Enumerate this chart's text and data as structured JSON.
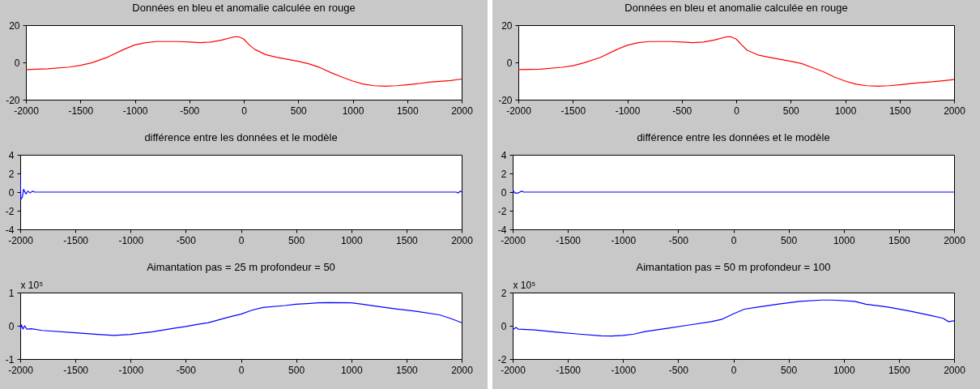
{
  "chart_data": [
    {
      "type": "line",
      "title": "Données en bleu et anomalie calculée en rouge",
      "xlim": [
        -2000,
        2000
      ],
      "xticks": [
        -2000,
        -1500,
        -1000,
        -500,
        0,
        500,
        1000,
        1500,
        2000
      ],
      "ylim": [
        -20,
        20
      ],
      "yticks": [
        -20,
        0,
        20
      ],
      "grid": false,
      "series": [
        {
          "color": "#ff0000",
          "x": [
            -2000,
            -1800,
            -1600,
            -1500,
            -1400,
            -1250,
            -1100,
            -1000,
            -900,
            -800,
            -600,
            -500,
            -400,
            -300,
            -200,
            -100,
            -50,
            0,
            50,
            100,
            200,
            300,
            500,
            600,
            700,
            800,
            900,
            1000,
            1100,
            1200,
            1300,
            1400,
            1500,
            1600,
            1700,
            1800,
            1900,
            2000
          ],
          "values": [
            -3.9,
            -3.4,
            -2.5,
            -1.6,
            -0.3,
            2.8,
            7,
            9.4,
            10.6,
            11.2,
            11.2,
            10.9,
            10.6,
            10.9,
            12,
            13.6,
            13.8,
            12.5,
            9.4,
            7,
            4.2,
            2.8,
            0.6,
            -0.8,
            -2.8,
            -5.5,
            -7.8,
            -10,
            -11.7,
            -12.5,
            -12.8,
            -12.5,
            -12,
            -11.4,
            -10.6,
            -10.2,
            -9.7,
            -8.9
          ]
        }
      ]
    },
    {
      "type": "line",
      "title": "Données en bleu et anomalie calculée en rouge",
      "xlim": [
        -2000,
        2000
      ],
      "xticks": [
        -2000,
        -1500,
        -1000,
        -500,
        0,
        500,
        1000,
        1500,
        2000
      ],
      "ylim": [
        -20,
        20
      ],
      "yticks": [
        -20,
        0,
        20
      ],
      "grid": false,
      "series": [
        {
          "color": "#ff0000",
          "x": [
            -2000,
            -1800,
            -1600,
            -1500,
            -1400,
            -1250,
            -1100,
            -1000,
            -900,
            -800,
            -600,
            -500,
            -400,
            -300,
            -200,
            -100,
            -50,
            0,
            50,
            100,
            200,
            300,
            500,
            600,
            700,
            800,
            900,
            1000,
            1100,
            1200,
            1300,
            1400,
            1500,
            1600,
            1700,
            1800,
            1900,
            2000
          ],
          "values": [
            -3.9,
            -3.6,
            -2.6,
            -1.8,
            -0.3,
            2.6,
            6.8,
            9.2,
            10.6,
            11.2,
            11.2,
            10.9,
            10.6,
            10.9,
            12,
            13.6,
            13.8,
            12.5,
            9.4,
            6.5,
            4,
            2.8,
            0.6,
            -0.6,
            -2.8,
            -5,
            -7.8,
            -10,
            -11.7,
            -12.5,
            -12.8,
            -12.5,
            -12,
            -11.4,
            -10.8,
            -10.4,
            -9.8,
            -9.2
          ]
        }
      ]
    },
    {
      "type": "line",
      "title": "différence entre les données et le modèle",
      "xlim": [
        -2000,
        2000
      ],
      "xticks": [
        -2000,
        -1500,
        -1000,
        -500,
        0,
        500,
        1000,
        1500,
        2000
      ],
      "ylim": [
        -4,
        4
      ],
      "yticks": [
        -4,
        -2,
        0,
        2,
        4
      ],
      "grid": false,
      "series": [
        {
          "color": "#0000ff",
          "x": [
            -2000,
            -1995,
            -1980,
            -1970,
            -1950,
            -1930,
            -1910,
            -1890,
            -1870,
            1950,
            1970,
            1985,
            2000
          ],
          "values": [
            2,
            -0.8,
            -0.5,
            0.3,
            -0.2,
            0.1,
            -0.1,
            0.1,
            0,
            0,
            -0.1,
            0.1,
            0
          ]
        }
      ]
    },
    {
      "type": "line",
      "title": "différence entre les données et le modèle",
      "xlim": [
        -2000,
        2000
      ],
      "xticks": [
        -2000,
        -1500,
        -1000,
        -500,
        0,
        500,
        1000,
        1500,
        2000
      ],
      "ylim": [
        -4,
        4
      ],
      "yticks": [
        -4,
        -2,
        0,
        2,
        4
      ],
      "grid": false,
      "series": [
        {
          "color": "#0000ff",
          "x": [
            -2000,
            -1980,
            -1950,
            -1920,
            -1900,
            2000
          ],
          "values": [
            0.2,
            -0.1,
            -0.1,
            0.1,
            0,
            0
          ]
        }
      ]
    },
    {
      "type": "line",
      "title": "Aimantation pas = 25 m profondeur = 50",
      "ylabel": "x 10⁵",
      "xlim": [
        -2000,
        2000
      ],
      "xticks": [
        -2000,
        -1500,
        -1000,
        -500,
        0,
        500,
        1000,
        1500,
        2000
      ],
      "ylim": [
        -1,
        1
      ],
      "yticks": [
        -1,
        0,
        1
      ],
      "grid": false,
      "series": [
        {
          "color": "#0000ff",
          "x": [
            -2000,
            -1990,
            -1975,
            -1960,
            -1940,
            -1900,
            -1800,
            -1500,
            -1300,
            -1150,
            -1000,
            -800,
            -600,
            -500,
            -400,
            -300,
            -200,
            -100,
            0,
            100,
            200,
            400,
            500,
            600,
            700,
            800,
            1000,
            1100,
            1200,
            1400,
            1600,
            1800,
            1900,
            1950,
            2000
          ],
          "values": [
            -0.15,
            0.03,
            -0.1,
            0,
            -0.1,
            -0.09,
            -0.14,
            -0.21,
            -0.26,
            -0.29,
            -0.26,
            -0.18,
            -0.07,
            -0.02,
            0.04,
            0.09,
            0.18,
            0.27,
            0.35,
            0.47,
            0.55,
            0.61,
            0.65,
            0.67,
            0.69,
            0.7,
            0.69,
            0.65,
            0.6,
            0.51,
            0.43,
            0.33,
            0.22,
            0.16,
            0.09
          ]
        }
      ]
    },
    {
      "type": "line",
      "title": "Aimantation pas = 50 m profondeur = 100",
      "ylabel": "x 10⁵",
      "xlim": [
        -2000,
        2000
      ],
      "xticks": [
        -2000,
        -1500,
        -1000,
        -500,
        0,
        500,
        1000,
        1500,
        2000
      ],
      "ylim": [
        -2,
        2
      ],
      "yticks": [
        -2,
        0,
        2
      ],
      "grid": false,
      "series": [
        {
          "color": "#0000ff",
          "x": [
            -2000,
            -1970,
            -1950,
            -1800,
            -1600,
            -1400,
            -1200,
            -1100,
            -1000,
            -900,
            -800,
            -600,
            -400,
            -200,
            -100,
            0,
            100,
            200,
            400,
            600,
            800,
            900,
            1100,
            1200,
            1400,
            1600,
            1800,
            1900,
            1950,
            2000
          ],
          "values": [
            -0.25,
            -0.1,
            -0.2,
            -0.25,
            -0.38,
            -0.5,
            -0.6,
            -0.62,
            -0.58,
            -0.5,
            -0.35,
            -0.15,
            0.05,
            0.25,
            0.4,
            0.72,
            1,
            1.1,
            1.3,
            1.47,
            1.55,
            1.55,
            1.47,
            1.3,
            1.13,
            0.88,
            0.6,
            0.45,
            0.25,
            0.3
          ]
        }
      ]
    }
  ]
}
